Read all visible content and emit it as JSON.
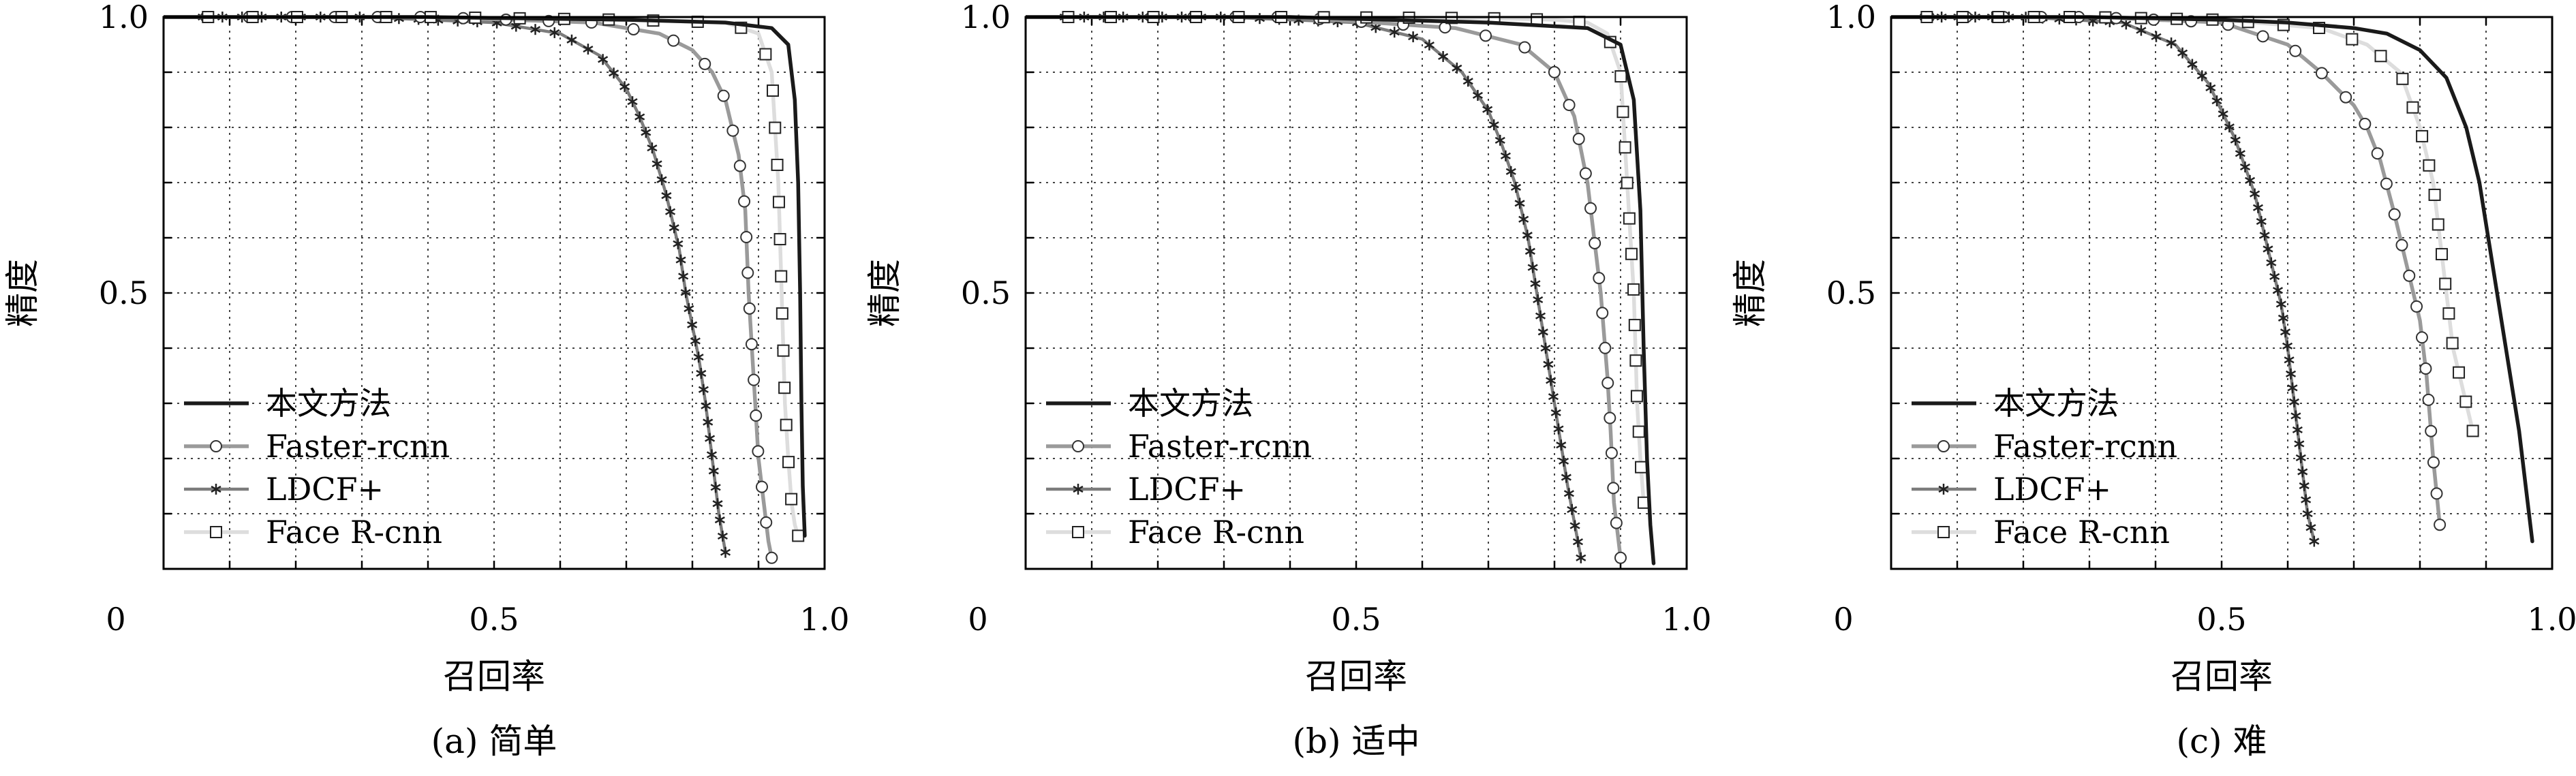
{
  "figure": {
    "panels": [
      {
        "caption": "(a) 简单"
      },
      {
        "caption": "(b) 适中"
      },
      {
        "caption": "(c) 难"
      }
    ]
  },
  "styles": {
    "本文方法": {
      "color": "#1a1a1a",
      "marker": "none",
      "width": 5.5
    },
    "Faster-rcnn": {
      "color": "#9a9a9a",
      "marker": "circle",
      "width": 5.5
    },
    "LDCF+": {
      "color": "#7c7c7c",
      "marker": "star",
      "width": 4.5
    },
    "Face R-cnn": {
      "color": "#dddddd",
      "marker": "square",
      "width": 5.5
    }
  },
  "chart_data": [
    {
      "type": "line",
      "title": "(a) 简单",
      "xlabel": "召回率",
      "ylabel": "精度",
      "xlim": [
        0,
        1.0
      ],
      "ylim": [
        0,
        1.0
      ],
      "xticks": [
        0,
        0.5,
        1.0
      ],
      "xtick_labels": [
        "0",
        "0.5",
        "1.0"
      ],
      "yticks": [
        0.5,
        1.0
      ],
      "ytick_labels": [
        "0.5",
        "1.0"
      ],
      "grid": true,
      "legend_position": "bottom-left",
      "series": [
        {
          "name": "本文方法",
          "x": [
            0,
            0.4,
            0.7,
            0.85,
            0.92,
            0.945,
            0.955,
            0.96,
            0.963,
            0.965,
            0.967,
            0.97
          ],
          "y": [
            1.0,
            1.0,
            0.995,
            0.99,
            0.98,
            0.95,
            0.85,
            0.7,
            0.5,
            0.3,
            0.15,
            0.06
          ]
        },
        {
          "name": "Faster-rcnn",
          "x": [
            0,
            0.4,
            0.65,
            0.75,
            0.8,
            0.83,
            0.85,
            0.87,
            0.88,
            0.885,
            0.89,
            0.895,
            0.9,
            0.905,
            0.91,
            0.915,
            0.92
          ],
          "y": [
            1.0,
            1.0,
            0.99,
            0.97,
            0.94,
            0.9,
            0.85,
            0.75,
            0.65,
            0.5,
            0.4,
            0.3,
            0.2,
            0.15,
            0.1,
            0.05,
            0.02
          ]
        },
        {
          "name": "LDCF+",
          "x": [
            0,
            0.3,
            0.5,
            0.6,
            0.66,
            0.7,
            0.72,
            0.74,
            0.76,
            0.78,
            0.79,
            0.8,
            0.81,
            0.82,
            0.83,
            0.84,
            0.85
          ],
          "y": [
            1.0,
            1.0,
            0.99,
            0.97,
            0.93,
            0.87,
            0.82,
            0.76,
            0.68,
            0.58,
            0.5,
            0.44,
            0.38,
            0.3,
            0.2,
            0.1,
            0.03
          ]
        },
        {
          "name": "Face R-cnn",
          "x": [
            0,
            0.4,
            0.7,
            0.85,
            0.9,
            0.92,
            0.93,
            0.935,
            0.94,
            0.945,
            0.95,
            0.955,
            0.96
          ],
          "y": [
            1.0,
            1.0,
            0.995,
            0.99,
            0.97,
            0.9,
            0.7,
            0.5,
            0.3,
            0.2,
            0.12,
            0.08,
            0.06
          ]
        }
      ]
    },
    {
      "type": "line",
      "title": "(b) 适中",
      "xlabel": "召回率",
      "ylabel": "精度",
      "xlim": [
        0,
        1.0
      ],
      "ylim": [
        0,
        1.0
      ],
      "xticks": [
        0,
        0.5,
        1.0
      ],
      "xtick_labels": [
        "0",
        "0.5",
        "1.0"
      ],
      "yticks": [
        0.5,
        1.0
      ],
      "ytick_labels": [
        "0.5",
        "1.0"
      ],
      "grid": true,
      "legend_position": "bottom-left",
      "series": [
        {
          "name": "本文方法",
          "x": [
            0,
            0.4,
            0.7,
            0.85,
            0.9,
            0.92,
            0.93,
            0.935,
            0.94,
            0.945,
            0.95
          ],
          "y": [
            1.0,
            1.0,
            0.99,
            0.98,
            0.95,
            0.85,
            0.65,
            0.4,
            0.2,
            0.08,
            0.01
          ]
        },
        {
          "name": "Faster-rcnn",
          "x": [
            0,
            0.4,
            0.65,
            0.75,
            0.8,
            0.83,
            0.85,
            0.86,
            0.87,
            0.88,
            0.885,
            0.89,
            0.9
          ],
          "y": [
            1.0,
            1.0,
            0.98,
            0.95,
            0.9,
            0.82,
            0.7,
            0.6,
            0.5,
            0.35,
            0.25,
            0.12,
            0.02
          ]
        },
        {
          "name": "LDCF+",
          "x": [
            0,
            0.3,
            0.5,
            0.6,
            0.66,
            0.7,
            0.72,
            0.74,
            0.76,
            0.78,
            0.8,
            0.82,
            0.84
          ],
          "y": [
            1.0,
            1.0,
            0.99,
            0.96,
            0.9,
            0.83,
            0.77,
            0.7,
            0.6,
            0.45,
            0.3,
            0.15,
            0.02
          ]
        },
        {
          "name": "Face R-cnn",
          "x": [
            0,
            0.4,
            0.7,
            0.8,
            0.85,
            0.88,
            0.9,
            0.91,
            0.92,
            0.925,
            0.93,
            0.935
          ],
          "y": [
            1.0,
            1.0,
            0.998,
            0.995,
            0.99,
            0.97,
            0.9,
            0.7,
            0.5,
            0.3,
            0.2,
            0.12
          ]
        }
      ]
    },
    {
      "type": "line",
      "title": "(c) 难",
      "xlabel": "召回率",
      "ylabel": "精度",
      "xlim": [
        0,
        1.0
      ],
      "ylim": [
        0,
        1.0
      ],
      "xticks": [
        0,
        0.5,
        1.0
      ],
      "xtick_labels": [
        "0",
        "0.5",
        "1.0"
      ],
      "yticks": [
        0.5,
        1.0
      ],
      "ytick_labels": [
        "0.5",
        "1.0"
      ],
      "grid": true,
      "legend_position": "bottom-left",
      "series": [
        {
          "name": "本文方法",
          "x": [
            0,
            0.3,
            0.5,
            0.6,
            0.7,
            0.75,
            0.8,
            0.84,
            0.87,
            0.89,
            0.91,
            0.93,
            0.95,
            0.97
          ],
          "y": [
            1.0,
            1.0,
            0.995,
            0.99,
            0.98,
            0.97,
            0.94,
            0.89,
            0.8,
            0.7,
            0.55,
            0.4,
            0.25,
            0.05
          ]
        },
        {
          "name": "Faster-rcnn",
          "x": [
            0,
            0.3,
            0.5,
            0.6,
            0.65,
            0.7,
            0.72,
            0.74,
            0.76,
            0.78,
            0.8,
            0.81,
            0.82,
            0.83
          ],
          "y": [
            1.0,
            1.0,
            0.99,
            0.95,
            0.9,
            0.84,
            0.8,
            0.74,
            0.65,
            0.55,
            0.45,
            0.35,
            0.2,
            0.08
          ]
        },
        {
          "name": "LDCF+",
          "x": [
            0,
            0.2,
            0.35,
            0.43,
            0.48,
            0.52,
            0.55,
            0.57,
            0.59,
            0.6,
            0.61,
            0.62,
            0.63,
            0.64
          ],
          "y": [
            1.0,
            1.0,
            0.99,
            0.95,
            0.88,
            0.78,
            0.68,
            0.58,
            0.48,
            0.4,
            0.3,
            0.2,
            0.1,
            0.05
          ]
        },
        {
          "name": "Face R-cnn",
          "x": [
            0,
            0.3,
            0.5,
            0.65,
            0.72,
            0.77,
            0.8,
            0.82,
            0.83,
            0.84,
            0.85,
            0.86,
            0.87,
            0.88
          ],
          "y": [
            1.0,
            1.0,
            0.995,
            0.98,
            0.95,
            0.9,
            0.8,
            0.7,
            0.6,
            0.5,
            0.4,
            0.35,
            0.3,
            0.25
          ]
        }
      ]
    }
  ]
}
